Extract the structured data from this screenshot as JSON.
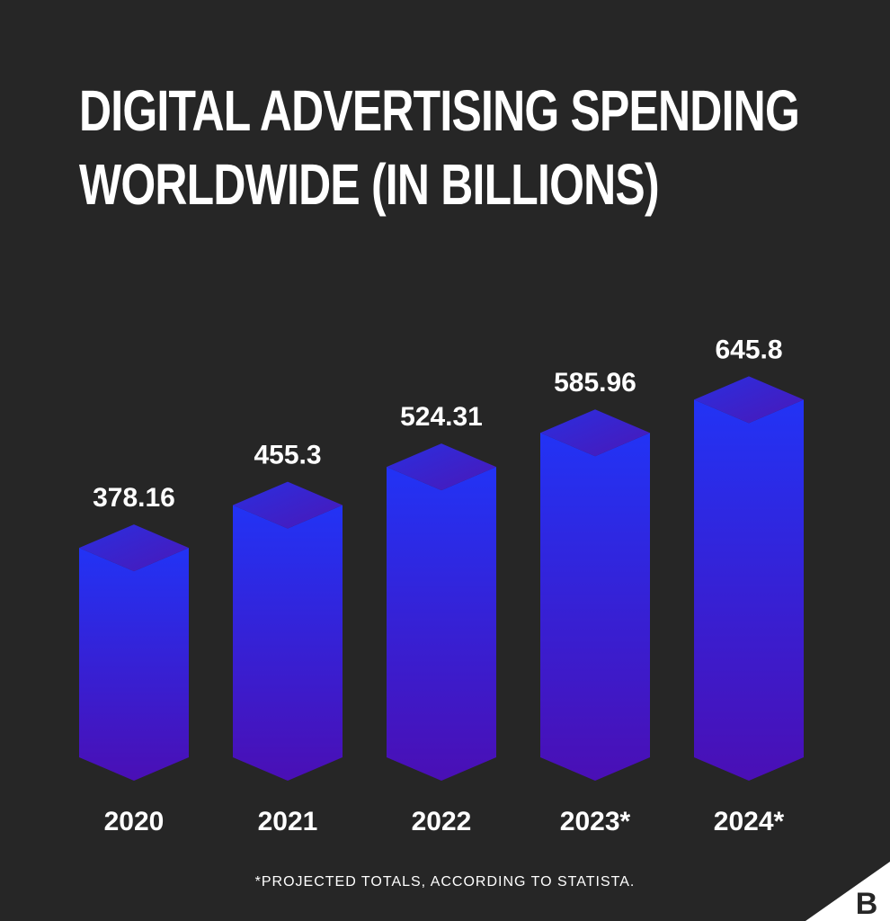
{
  "chart_data": {
    "type": "bar",
    "title": "DIGITAL ADVERTISING SPENDING WORLDWIDE (IN BILLIONS)",
    "title_lines": [
      "DIGITAL ADVERTISING SPENDING",
      "WORLDWIDE (IN BILLIONS)"
    ],
    "categories": [
      "2020",
      "2021",
      "2022",
      "2023*",
      "2024*"
    ],
    "values": [
      378.16,
      455.3,
      524.31,
      585.96,
      645.8
    ],
    "value_labels": [
      "378.16",
      "455.3",
      "524.31",
      "585.96",
      "645.8"
    ],
    "xlabel": "",
    "ylabel": "",
    "footnote": "*PROJECTED TOTALS, ACCORDING TO STATISTA.",
    "grid": false,
    "legend": "none"
  },
  "colors": {
    "background": "#262626",
    "bar_top": "#2233f5",
    "bar_bottom": "#4a0fb5",
    "bar_cap": "#3a1fc8",
    "text": "#ffffff"
  },
  "logo": {
    "letter": "B",
    "icon": "bigcommerce-logo-icon"
  }
}
